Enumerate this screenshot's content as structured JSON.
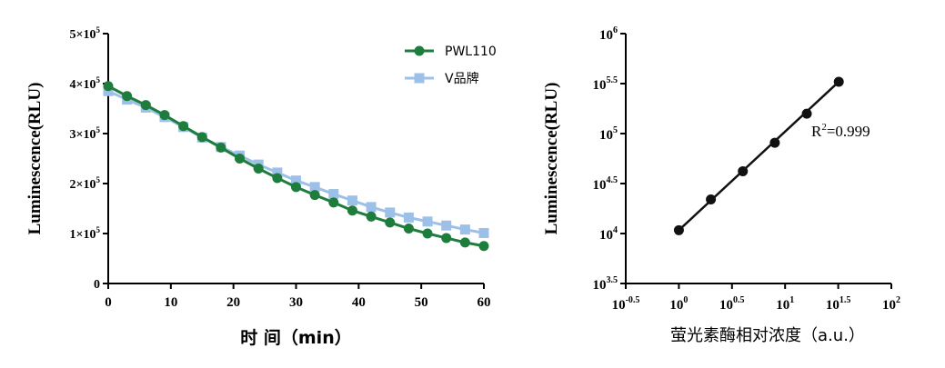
{
  "chart_data": [
    {
      "type": "line",
      "xlabel": "时 间（min）",
      "ylabel": "Luminescence(RLU)",
      "xlim": [
        0,
        60
      ],
      "ylim": [
        0,
        500000
      ],
      "xticks": [
        0,
        10,
        20,
        30,
        40,
        50,
        60
      ],
      "xtick_labels": [
        "0",
        "10",
        "20",
        "30",
        "40",
        "50",
        "60"
      ],
      "yticks": [
        0,
        100000,
        200000,
        300000,
        400000,
        500000
      ],
      "ytick_labels": [
        {
          "base": "0",
          "exp": ""
        },
        {
          "base": "1×10",
          "exp": "5"
        },
        {
          "base": "2×10",
          "exp": "5"
        },
        {
          "base": "3×10",
          "exp": "5"
        },
        {
          "base": "4×10",
          "exp": "5"
        },
        {
          "base": "5×10",
          "exp": "5"
        }
      ],
      "legend_position": "top-right",
      "x": [
        0,
        3,
        6,
        9,
        12,
        15,
        18,
        21,
        24,
        27,
        30,
        33,
        36,
        39,
        42,
        45,
        48,
        51,
        54,
        57,
        60
      ],
      "series": [
        {
          "name": "PWL110",
          "color": "#1e7d3c",
          "marker": "circle",
          "values": [
            395000,
            375000,
            357000,
            337000,
            315000,
            293000,
            272000,
            250000,
            230000,
            211000,
            193000,
            177000,
            162000,
            146000,
            134000,
            122000,
            110000,
            100000,
            91000,
            82000,
            75000
          ]
        },
        {
          "name": "V品牌",
          "color": "#9dc0e8",
          "marker": "square",
          "values": [
            385000,
            368000,
            352000,
            333000,
            313000,
            292000,
            273000,
            256000,
            238000,
            222000,
            206000,
            193000,
            179000,
            166000,
            153000,
            142000,
            132000,
            124000,
            116000,
            108000,
            101000
          ]
        }
      ]
    },
    {
      "type": "scatter",
      "xlabel": "萤光素酶相对浓度（a.u.）",
      "ylabel": "Luminescence(RLU)",
      "xscale": "log",
      "yscale": "log",
      "xlim": [
        0.316,
        100
      ],
      "ylim": [
        3162,
        1000000
      ],
      "xticks": [
        {
          "base": "10",
          "exp": "-0.5"
        },
        {
          "base": "10",
          "exp": "0"
        },
        {
          "base": "10",
          "exp": "0.5"
        },
        {
          "base": "10",
          "exp": "1"
        },
        {
          "base": "10",
          "exp": "1.5"
        },
        {
          "base": "10",
          "exp": "2"
        }
      ],
      "yticks": [
        {
          "base": "10",
          "exp": "3.5"
        },
        {
          "base": "10",
          "exp": "4"
        },
        {
          "base": "10",
          "exp": "4.5"
        },
        {
          "base": "10",
          "exp": "5"
        },
        {
          "base": "10",
          "exp": "5.5"
        },
        {
          "base": "10",
          "exp": "6"
        }
      ],
      "annotation": {
        "base": "R",
        "exp": "2",
        "rest": "=0.999"
      },
      "color": "#111111",
      "x": [
        1,
        2,
        4,
        8,
        16,
        32
      ],
      "values": [
        10800,
        21900,
        42000,
        81000,
        158000,
        330000
      ]
    }
  ]
}
